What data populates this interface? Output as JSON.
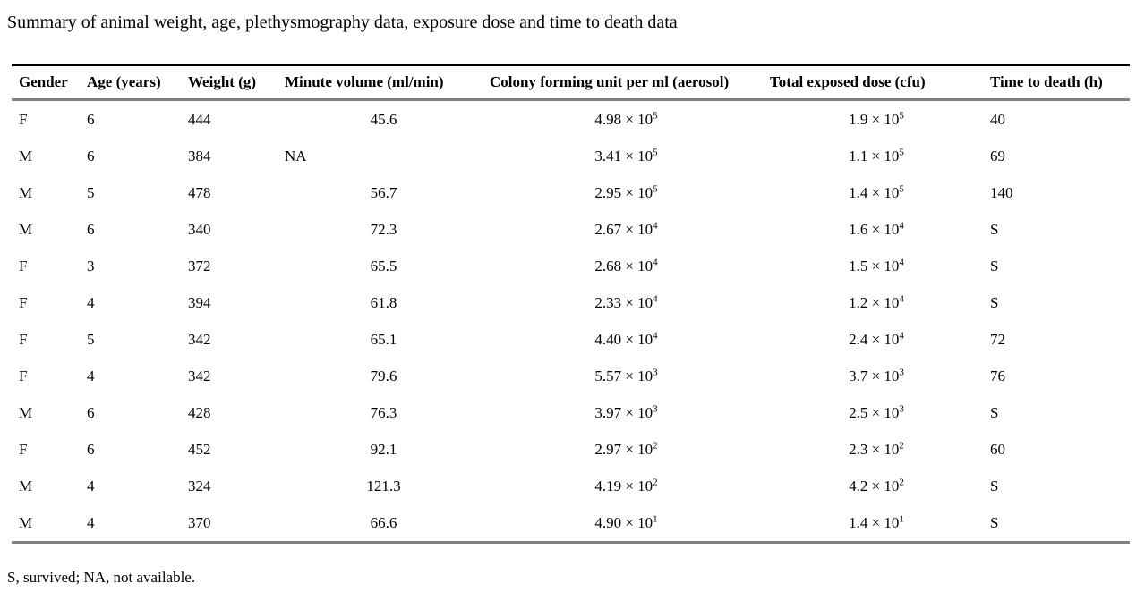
{
  "caption": "Summary of animal weight, age, plethysmography data, exposure dose and time to death data",
  "table": {
    "columns": [
      {
        "label": "Gender"
      },
      {
        "label": "Age (years)"
      },
      {
        "label": "Weight (g)"
      },
      {
        "label": "Minute volume (ml/min)"
      },
      {
        "label": "Colony forming unit per ml (aerosol)"
      },
      {
        "label": "Total exposed dose (cfu)"
      },
      {
        "label": "Time to death (h)"
      }
    ],
    "rows": [
      [
        "F",
        "6",
        "444",
        "45.6",
        "4.98 × 10^5",
        "1.9 × 10^5",
        "40"
      ],
      [
        "M",
        "6",
        "384",
        "NA",
        "3.41 × 10^5",
        "1.1 × 10^5",
        "69"
      ],
      [
        "M",
        "5",
        "478",
        "56.7",
        "2.95 × 10^5",
        "1.4 × 10^5",
        "140"
      ],
      [
        "M",
        "6",
        "340",
        "72.3",
        "2.67 × 10^4",
        "1.6 × 10^4",
        "S"
      ],
      [
        "F",
        "3",
        "372",
        "65.5",
        "2.68 × 10^4",
        "1.5 × 10^4",
        "S"
      ],
      [
        "F",
        "4",
        "394",
        "61.8",
        "2.33 × 10^4",
        "1.2 × 10^4",
        "S"
      ],
      [
        "F",
        "5",
        "342",
        "65.1",
        "4.40 × 10^4",
        "2.4 × 10^4",
        "72"
      ],
      [
        "F",
        "4",
        "342",
        "79.6",
        "5.57 × 10^3",
        "3.7 × 10^3",
        "76"
      ],
      [
        "M",
        "6",
        "428",
        "76.3",
        "3.97 × 10^3",
        "2.5 × 10^3",
        "S"
      ],
      [
        "F",
        "6",
        "452",
        "92.1",
        "2.97 × 10^2",
        "2.3 × 10^2",
        "60"
      ],
      [
        "M",
        "4",
        "324",
        "121.3",
        "4.19 × 10^2",
        "4.2 × 10^2",
        "S"
      ],
      [
        "M",
        "4",
        "370",
        "66.6",
        "4.90 × 10^1",
        "1.4 × 10^1",
        "S"
      ]
    ]
  },
  "footnote": "S, survived; NA, not available.",
  "colors": {
    "background": "#ffffff",
    "text": "#000000",
    "rule_top": "#000000",
    "rule_gray": "#808080"
  }
}
